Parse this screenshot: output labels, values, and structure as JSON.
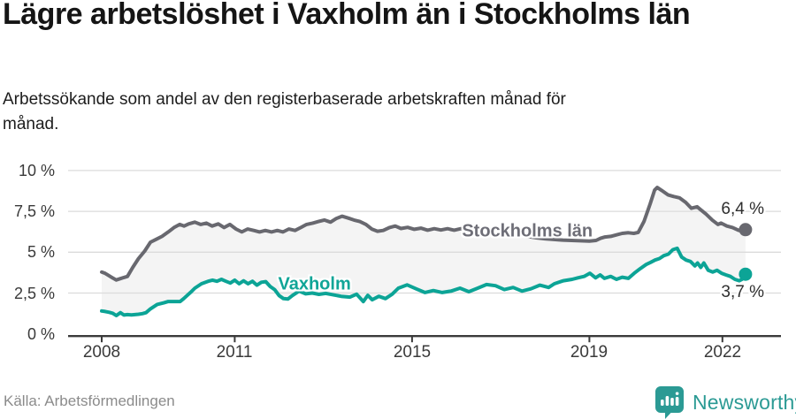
{
  "header": {
    "title": "Lägre arbetslöshet i Vaxholm än i Stockholms län",
    "subtitle": "Arbetssökande som andel av den registerbaserade arbetskraften månad för månad."
  },
  "footer": {
    "source": "Källa: Arbetsförmedlingen",
    "brand": "Newsworthy"
  },
  "colors": {
    "stockholm_line": "#68686f",
    "vaxholm_line": "#0ca496",
    "vaxholm_label": "#10a597",
    "stockholm_label": "#6e6e77",
    "grid": "#dbdbdb",
    "axis": "#3a3a3a",
    "fill_between": "#f4f4f4",
    "brand_teal": "#2b9a94"
  },
  "chart_data": {
    "type": "line",
    "title": "Lägre arbetslöshet i Vaxholm än i Stockholms län",
    "xlabel": "",
    "ylabel": "",
    "grid": true,
    "x_axis": {
      "ticks": [
        2008,
        2011,
        2015,
        2019,
        2022
      ],
      "tick_labels": [
        "2008",
        "2011",
        "2015",
        "2019",
        "2022"
      ],
      "range": [
        2007.8,
        2022.6
      ]
    },
    "y_axis": {
      "ticks": [
        0,
        2.5,
        5,
        7.5,
        10
      ],
      "tick_labels": [
        "0 %",
        "2,5 %",
        "5 %",
        "7,5 %",
        "10 %"
      ],
      "range": [
        0,
        10
      ],
      "unit": "%"
    },
    "series": [
      {
        "name": "Stockholms län",
        "color": "#68686f",
        "end_value": 6.4,
        "end_label": "6,4 %",
        "end_label_side": "above",
        "label_pos": {
          "year": 2017.6,
          "value": 6.26
        },
        "points": [
          [
            2008.0,
            3.78
          ],
          [
            2008.08,
            3.7
          ],
          [
            2008.17,
            3.55
          ],
          [
            2008.25,
            3.42
          ],
          [
            2008.33,
            3.3
          ],
          [
            2008.42,
            3.38
          ],
          [
            2008.5,
            3.45
          ],
          [
            2008.58,
            3.52
          ],
          [
            2008.7,
            4.07
          ],
          [
            2008.83,
            4.61
          ],
          [
            2008.97,
            5.07
          ],
          [
            2009.1,
            5.61
          ],
          [
            2009.23,
            5.79
          ],
          [
            2009.36,
            5.97
          ],
          [
            2009.5,
            6.24
          ],
          [
            2009.63,
            6.51
          ],
          [
            2009.76,
            6.7
          ],
          [
            2009.86,
            6.6
          ],
          [
            2009.96,
            6.73
          ],
          [
            2010.1,
            6.84
          ],
          [
            2010.23,
            6.7
          ],
          [
            2010.36,
            6.78
          ],
          [
            2010.49,
            6.6
          ],
          [
            2010.63,
            6.73
          ],
          [
            2010.76,
            6.51
          ],
          [
            2010.89,
            6.7
          ],
          [
            2011.03,
            6.42
          ],
          [
            2011.16,
            6.24
          ],
          [
            2011.29,
            6.42
          ],
          [
            2011.43,
            6.33
          ],
          [
            2011.56,
            6.24
          ],
          [
            2011.69,
            6.33
          ],
          [
            2011.83,
            6.24
          ],
          [
            2011.96,
            6.33
          ],
          [
            2012.09,
            6.24
          ],
          [
            2012.22,
            6.42
          ],
          [
            2012.36,
            6.33
          ],
          [
            2012.49,
            6.51
          ],
          [
            2012.62,
            6.7
          ],
          [
            2012.76,
            6.78
          ],
          [
            2012.89,
            6.88
          ],
          [
            2013.02,
            6.97
          ],
          [
            2013.16,
            6.84
          ],
          [
            2013.29,
            7.06
          ],
          [
            2013.42,
            7.2
          ],
          [
            2013.56,
            7.09
          ],
          [
            2013.69,
            6.97
          ],
          [
            2013.82,
            6.88
          ],
          [
            2013.96,
            6.7
          ],
          [
            2014.09,
            6.42
          ],
          [
            2014.22,
            6.28
          ],
          [
            2014.35,
            6.33
          ],
          [
            2014.49,
            6.51
          ],
          [
            2014.62,
            6.6
          ],
          [
            2014.75,
            6.45
          ],
          [
            2014.9,
            6.52
          ],
          [
            2015.05,
            6.4
          ],
          [
            2015.2,
            6.47
          ],
          [
            2015.35,
            6.35
          ],
          [
            2015.5,
            6.44
          ],
          [
            2015.65,
            6.36
          ],
          [
            2015.8,
            6.44
          ],
          [
            2015.95,
            6.35
          ],
          [
            2016.1,
            6.44
          ],
          [
            2016.25,
            6.36
          ],
          [
            2016.4,
            6.45
          ],
          [
            2016.55,
            6.38
          ],
          [
            2016.7,
            6.44
          ],
          [
            2016.85,
            6.4
          ],
          [
            2017.0,
            6.33
          ],
          [
            2017.2,
            6.2
          ],
          [
            2017.4,
            6.08
          ],
          [
            2017.6,
            5.97
          ],
          [
            2017.8,
            5.88
          ],
          [
            2018.0,
            5.82
          ],
          [
            2018.2,
            5.78
          ],
          [
            2018.4,
            5.74
          ],
          [
            2018.6,
            5.72
          ],
          [
            2018.8,
            5.7
          ],
          [
            2019.0,
            5.68
          ],
          [
            2019.15,
            5.72
          ],
          [
            2019.25,
            5.85
          ],
          [
            2019.35,
            5.93
          ],
          [
            2019.48,
            5.97
          ],
          [
            2019.61,
            6.06
          ],
          [
            2019.74,
            6.15
          ],
          [
            2019.88,
            6.19
          ],
          [
            2020.0,
            6.15
          ],
          [
            2020.1,
            6.21
          ],
          [
            2020.23,
            6.88
          ],
          [
            2020.37,
            7.96
          ],
          [
            2020.47,
            8.8
          ],
          [
            2020.53,
            8.96
          ],
          [
            2020.63,
            8.78
          ],
          [
            2020.77,
            8.51
          ],
          [
            2020.9,
            8.41
          ],
          [
            2021.03,
            8.33
          ],
          [
            2021.17,
            8.05
          ],
          [
            2021.3,
            7.69
          ],
          [
            2021.43,
            7.78
          ],
          [
            2021.51,
            7.6
          ],
          [
            2021.63,
            7.33
          ],
          [
            2021.77,
            6.97
          ],
          [
            2021.9,
            6.7
          ],
          [
            2021.97,
            6.78
          ],
          [
            2022.1,
            6.6
          ],
          [
            2022.23,
            6.51
          ],
          [
            2022.37,
            6.33
          ],
          [
            2022.44,
            6.42
          ],
          [
            2022.52,
            6.38
          ]
        ]
      },
      {
        "name": "Vaxholm",
        "color": "#0ca496",
        "end_value": 3.7,
        "end_label": "3,7 %",
        "end_label_side": "below",
        "label_pos": {
          "year": 2012.8,
          "value": 3.02
        },
        "points": [
          [
            2008.0,
            1.4
          ],
          [
            2008.08,
            1.37
          ],
          [
            2008.17,
            1.32
          ],
          [
            2008.25,
            1.26
          ],
          [
            2008.33,
            1.12
          ],
          [
            2008.42,
            1.3
          ],
          [
            2008.5,
            1.15
          ],
          [
            2008.58,
            1.18
          ],
          [
            2008.67,
            1.16
          ],
          [
            2008.75,
            1.18
          ],
          [
            2008.83,
            1.2
          ],
          [
            2008.92,
            1.24
          ],
          [
            2009.0,
            1.3
          ],
          [
            2009.1,
            1.53
          ],
          [
            2009.25,
            1.8
          ],
          [
            2009.4,
            1.9
          ],
          [
            2009.5,
            1.98
          ],
          [
            2009.63,
            1.98
          ],
          [
            2009.77,
            1.98
          ],
          [
            2009.85,
            2.16
          ],
          [
            2010.0,
            2.53
          ],
          [
            2010.1,
            2.8
          ],
          [
            2010.25,
            3.07
          ],
          [
            2010.4,
            3.22
          ],
          [
            2010.5,
            3.29
          ],
          [
            2010.6,
            3.22
          ],
          [
            2010.7,
            3.34
          ],
          [
            2010.8,
            3.22
          ],
          [
            2010.9,
            3.11
          ],
          [
            2011.0,
            3.29
          ],
          [
            2011.1,
            3.07
          ],
          [
            2011.2,
            3.25
          ],
          [
            2011.3,
            3.07
          ],
          [
            2011.4,
            3.22
          ],
          [
            2011.5,
            2.98
          ],
          [
            2011.6,
            3.16
          ],
          [
            2011.7,
            3.2
          ],
          [
            2011.8,
            2.9
          ],
          [
            2011.9,
            2.71
          ],
          [
            2012.0,
            2.35
          ],
          [
            2012.1,
            2.16
          ],
          [
            2012.2,
            2.13
          ],
          [
            2012.3,
            2.35
          ],
          [
            2012.45,
            2.62
          ],
          [
            2012.6,
            2.45
          ],
          [
            2012.75,
            2.5
          ],
          [
            2012.9,
            2.42
          ],
          [
            2013.05,
            2.48
          ],
          [
            2013.2,
            2.4
          ],
          [
            2013.4,
            2.3
          ],
          [
            2013.6,
            2.25
          ],
          [
            2013.75,
            2.43
          ],
          [
            2013.9,
            1.98
          ],
          [
            2014.0,
            2.36
          ],
          [
            2014.1,
            2.09
          ],
          [
            2014.25,
            2.3
          ],
          [
            2014.4,
            2.16
          ],
          [
            2014.55,
            2.43
          ],
          [
            2014.69,
            2.8
          ],
          [
            2014.89,
            3.0
          ],
          [
            2015.09,
            2.76
          ],
          [
            2015.29,
            2.53
          ],
          [
            2015.48,
            2.65
          ],
          [
            2015.68,
            2.53
          ],
          [
            2015.88,
            2.62
          ],
          [
            2016.08,
            2.8
          ],
          [
            2016.28,
            2.58
          ],
          [
            2016.48,
            2.8
          ],
          [
            2016.68,
            3.02
          ],
          [
            2016.88,
            2.95
          ],
          [
            2017.08,
            2.71
          ],
          [
            2017.28,
            2.84
          ],
          [
            2017.48,
            2.62
          ],
          [
            2017.68,
            2.76
          ],
          [
            2017.88,
            2.98
          ],
          [
            2018.08,
            2.84
          ],
          [
            2018.21,
            3.07
          ],
          [
            2018.41,
            3.25
          ],
          [
            2018.61,
            3.34
          ],
          [
            2018.74,
            3.43
          ],
          [
            2018.88,
            3.52
          ],
          [
            2019.01,
            3.71
          ],
          [
            2019.14,
            3.43
          ],
          [
            2019.24,
            3.61
          ],
          [
            2019.34,
            3.4
          ],
          [
            2019.48,
            3.52
          ],
          [
            2019.61,
            3.34
          ],
          [
            2019.74,
            3.47
          ],
          [
            2019.88,
            3.4
          ],
          [
            2020.01,
            3.71
          ],
          [
            2020.14,
            3.98
          ],
          [
            2020.28,
            4.25
          ],
          [
            2020.38,
            4.38
          ],
          [
            2020.48,
            4.52
          ],
          [
            2020.58,
            4.61
          ],
          [
            2020.68,
            4.79
          ],
          [
            2020.78,
            4.88
          ],
          [
            2020.88,
            5.15
          ],
          [
            2020.98,
            5.24
          ],
          [
            2021.08,
            4.7
          ],
          [
            2021.18,
            4.52
          ],
          [
            2021.28,
            4.43
          ],
          [
            2021.38,
            4.16
          ],
          [
            2021.44,
            4.34
          ],
          [
            2021.51,
            4.07
          ],
          [
            2021.58,
            4.34
          ],
          [
            2021.68,
            3.89
          ],
          [
            2021.78,
            3.79
          ],
          [
            2021.88,
            3.89
          ],
          [
            2021.98,
            3.71
          ],
          [
            2022.08,
            3.61
          ],
          [
            2022.18,
            3.52
          ],
          [
            2022.28,
            3.34
          ],
          [
            2022.38,
            3.25
          ],
          [
            2022.44,
            3.34
          ],
          [
            2022.52,
            3.65
          ]
        ]
      }
    ]
  }
}
